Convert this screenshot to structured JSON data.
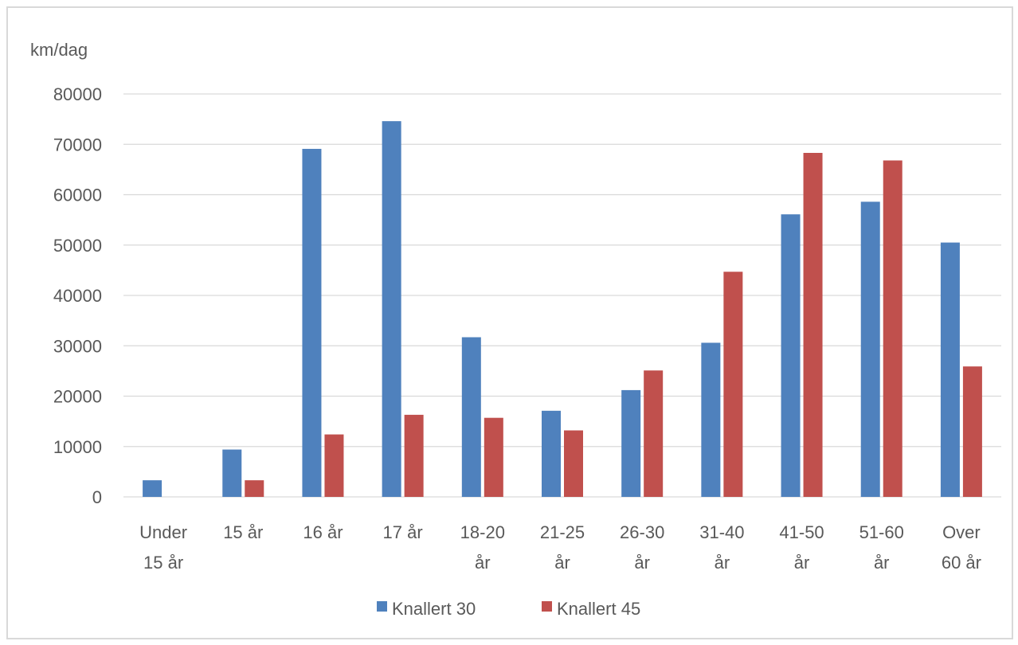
{
  "chart_data": {
    "type": "bar",
    "title": "",
    "ylabel": "km/dag",
    "xlabel": "",
    "ylim": [
      0,
      80000
    ],
    "yticks": [
      0,
      10000,
      20000,
      30000,
      40000,
      50000,
      60000,
      70000,
      80000
    ],
    "grid": true,
    "legend_position": "bottom",
    "categories": [
      [
        "Under",
        "15 år"
      ],
      [
        "15 år"
      ],
      [
        "16 år"
      ],
      [
        "17 år"
      ],
      [
        "18-20",
        "år"
      ],
      [
        "21-25",
        "år"
      ],
      [
        "26-30",
        "år"
      ],
      [
        "31-40",
        "år"
      ],
      [
        "41-50",
        "år"
      ],
      [
        "51-60",
        "år"
      ],
      [
        "Over",
        "60 år"
      ]
    ],
    "series": [
      {
        "name": "Knallert 30",
        "color": "#4f81bd",
        "values": [
          3300,
          9400,
          69100,
          74600,
          31700,
          17100,
          21200,
          30600,
          56100,
          58600,
          50500
        ]
      },
      {
        "name": "Knallert 45",
        "color": "#c0504d",
        "values": [
          0,
          3300,
          12400,
          16300,
          15700,
          13200,
          25100,
          44700,
          68300,
          66800,
          25900
        ]
      }
    ]
  }
}
